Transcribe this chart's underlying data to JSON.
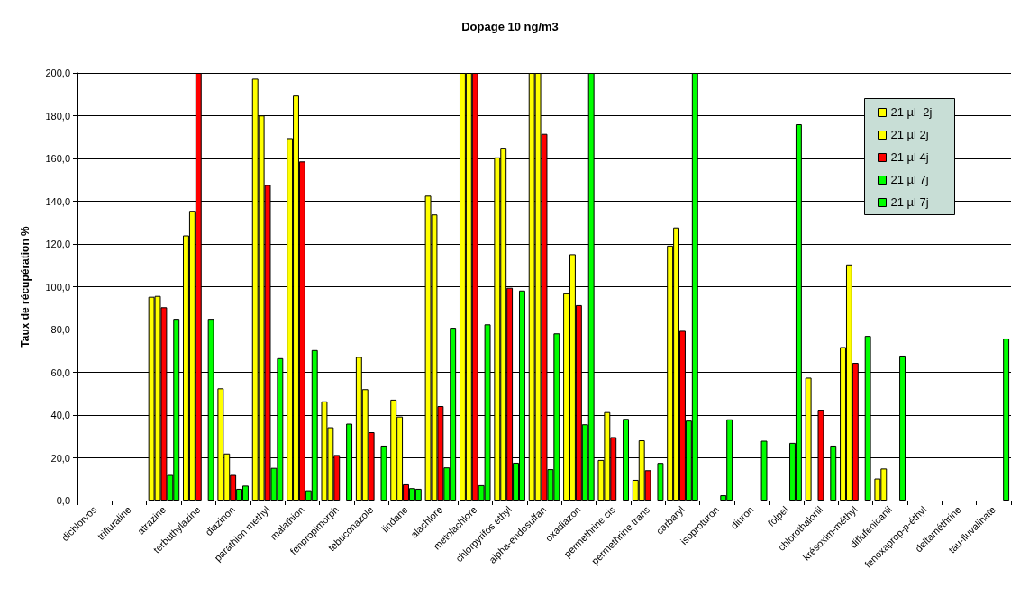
{
  "chart_data": {
    "type": "bar",
    "title": "Dopage 10 ng/m3",
    "ylabel": "Taux de récupération %",
    "categories": [
      "dichlorvos",
      "trifluraline",
      "atrazine",
      "terbuthylazine",
      "diazinon",
      "parathion methyl",
      "malathion",
      "fenpropimorph",
      "tebuconazole",
      "lindane",
      "alachlore",
      "metolachlore",
      "chlorpyrifos ethyl",
      "alpha-endosulfan",
      "oxadiazon",
      "permethrine cis",
      "permethrine trans",
      "carbaryl",
      "isoproturon",
      "diuron",
      "folpel",
      "chlorothalonil",
      "krésoxim-méthyl",
      "diflufenicanil",
      "fenoxaprop-p-éthyl",
      "deltaméthrine",
      "tau-fluvalinate"
    ],
    "series": [
      {
        "name": "21 µl  2j",
        "color": "#ffff00",
        "values": [
          null,
          null,
          95.3,
          124,
          52.5,
          197.3,
          169.5,
          46.4,
          67.2,
          47.2,
          142.6,
          200,
          160.5,
          200,
          96.9,
          19,
          9.7,
          119.2,
          null,
          null,
          null,
          57.5,
          71.8,
          10.3,
          null,
          null,
          null
        ]
      },
      {
        "name": "21 µl 2j",
        "color": "#ffff00",
        "values": [
          null,
          null,
          95.7,
          135.5,
          22,
          180.1,
          189.4,
          34.3,
          52.1,
          39.3,
          133.8,
          200,
          165,
          200,
          115.2,
          41.4,
          28.2,
          127.7,
          null,
          null,
          null,
          null,
          110.4,
          15,
          null,
          null,
          null
        ]
      },
      {
        "name": "21 µl 4j",
        "color": "#ff0000",
        "values": [
          null,
          null,
          90.4,
          200,
          12,
          147.6,
          158.6,
          21.3,
          32,
          7.6,
          44.2,
          200,
          99.5,
          171.5,
          91.4,
          29.7,
          14.2,
          79.4,
          null,
          null,
          null,
          42.5,
          64.4,
          null,
          null,
          null,
          null
        ]
      },
      {
        "name": "21 µl 7j",
        "color": "#00ff00",
        "values": [
          null,
          null,
          12,
          null,
          5.5,
          15.3,
          4.8,
          null,
          null,
          5.8,
          15.5,
          7.2,
          17.7,
          14.7,
          35.7,
          null,
          null,
          37.4,
          2.5,
          null,
          27,
          null,
          null,
          null,
          null,
          null,
          null
        ]
      },
      {
        "name": "21 µl 7j",
        "color": "#00ff00",
        "values": [
          null,
          null,
          85,
          85,
          7,
          66.6,
          70.4,
          36,
          25.7,
          5.5,
          80.8,
          82.4,
          98.2,
          78.2,
          200,
          38.2,
          17.6,
          200,
          38,
          28,
          176,
          25.7,
          77,
          67.8,
          null,
          null,
          75.8
        ]
      }
    ],
    "ylim": [
      0,
      200
    ],
    "yticks": [
      {
        "value": 0,
        "label": "0,0"
      },
      {
        "value": 20,
        "label": "20,0"
      },
      {
        "value": 40,
        "label": "40,0"
      },
      {
        "value": 60,
        "label": "60,0"
      },
      {
        "value": 80,
        "label": "80,0"
      },
      {
        "value": 100,
        "label": "100,0"
      },
      {
        "value": 120,
        "label": "120,0"
      },
      {
        "value": 140,
        "label": "140,0"
      },
      {
        "value": 160,
        "label": "160,0"
      },
      {
        "value": 180,
        "label": "180,0"
      },
      {
        "value": 200,
        "label": "200,0"
      }
    ],
    "grid": "y",
    "legend": "top right"
  }
}
